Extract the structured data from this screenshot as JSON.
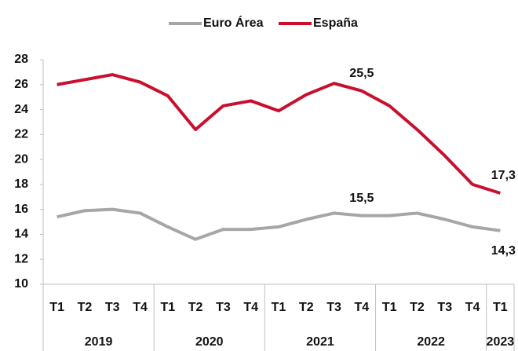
{
  "chart_data": {
    "type": "line",
    "categories": [
      [
        "2019",
        "T1"
      ],
      [
        "2019",
        "T2"
      ],
      [
        "2019",
        "T3"
      ],
      [
        "2019",
        "T4"
      ],
      [
        "2020",
        "T1"
      ],
      [
        "2020",
        "T2"
      ],
      [
        "2020",
        "T3"
      ],
      [
        "2020",
        "T4"
      ],
      [
        "2021",
        "T1"
      ],
      [
        "2021",
        "T2"
      ],
      [
        "2021",
        "T3"
      ],
      [
        "2021",
        "T4"
      ],
      [
        "2022",
        "T1"
      ],
      [
        "2022",
        "T2"
      ],
      [
        "2022",
        "T3"
      ],
      [
        "2022",
        "T4"
      ],
      [
        "2023",
        "T1"
      ]
    ],
    "series": [
      {
        "name": "Euro Área",
        "color": "#a6a6a6",
        "values": [
          15.4,
          15.9,
          16.0,
          15.7,
          14.6,
          13.6,
          14.4,
          14.4,
          14.6,
          15.2,
          15.7,
          15.5,
          15.5,
          15.7,
          15.2,
          14.6,
          14.3
        ],
        "value_labels": [
          null,
          null,
          null,
          null,
          null,
          null,
          null,
          null,
          null,
          null,
          null,
          "15,5",
          null,
          null,
          null,
          null,
          "14,3"
        ]
      },
      {
        "name": "España",
        "color": "#c8102e",
        "values": [
          26.0,
          26.4,
          26.8,
          26.2,
          25.1,
          22.4,
          24.3,
          24.7,
          23.9,
          25.2,
          26.1,
          25.5,
          24.3,
          22.4,
          20.3,
          18.0,
          17.3
        ],
        "value_labels": [
          null,
          null,
          null,
          null,
          null,
          null,
          null,
          null,
          null,
          null,
          null,
          "25,5",
          null,
          null,
          null,
          null,
          "17,3"
        ]
      }
    ],
    "ylim": [
      10,
      28
    ],
    "yticks": [
      10,
      12,
      14,
      16,
      18,
      20,
      22,
      24,
      26,
      28
    ],
    "legend": "top",
    "grid": false
  }
}
